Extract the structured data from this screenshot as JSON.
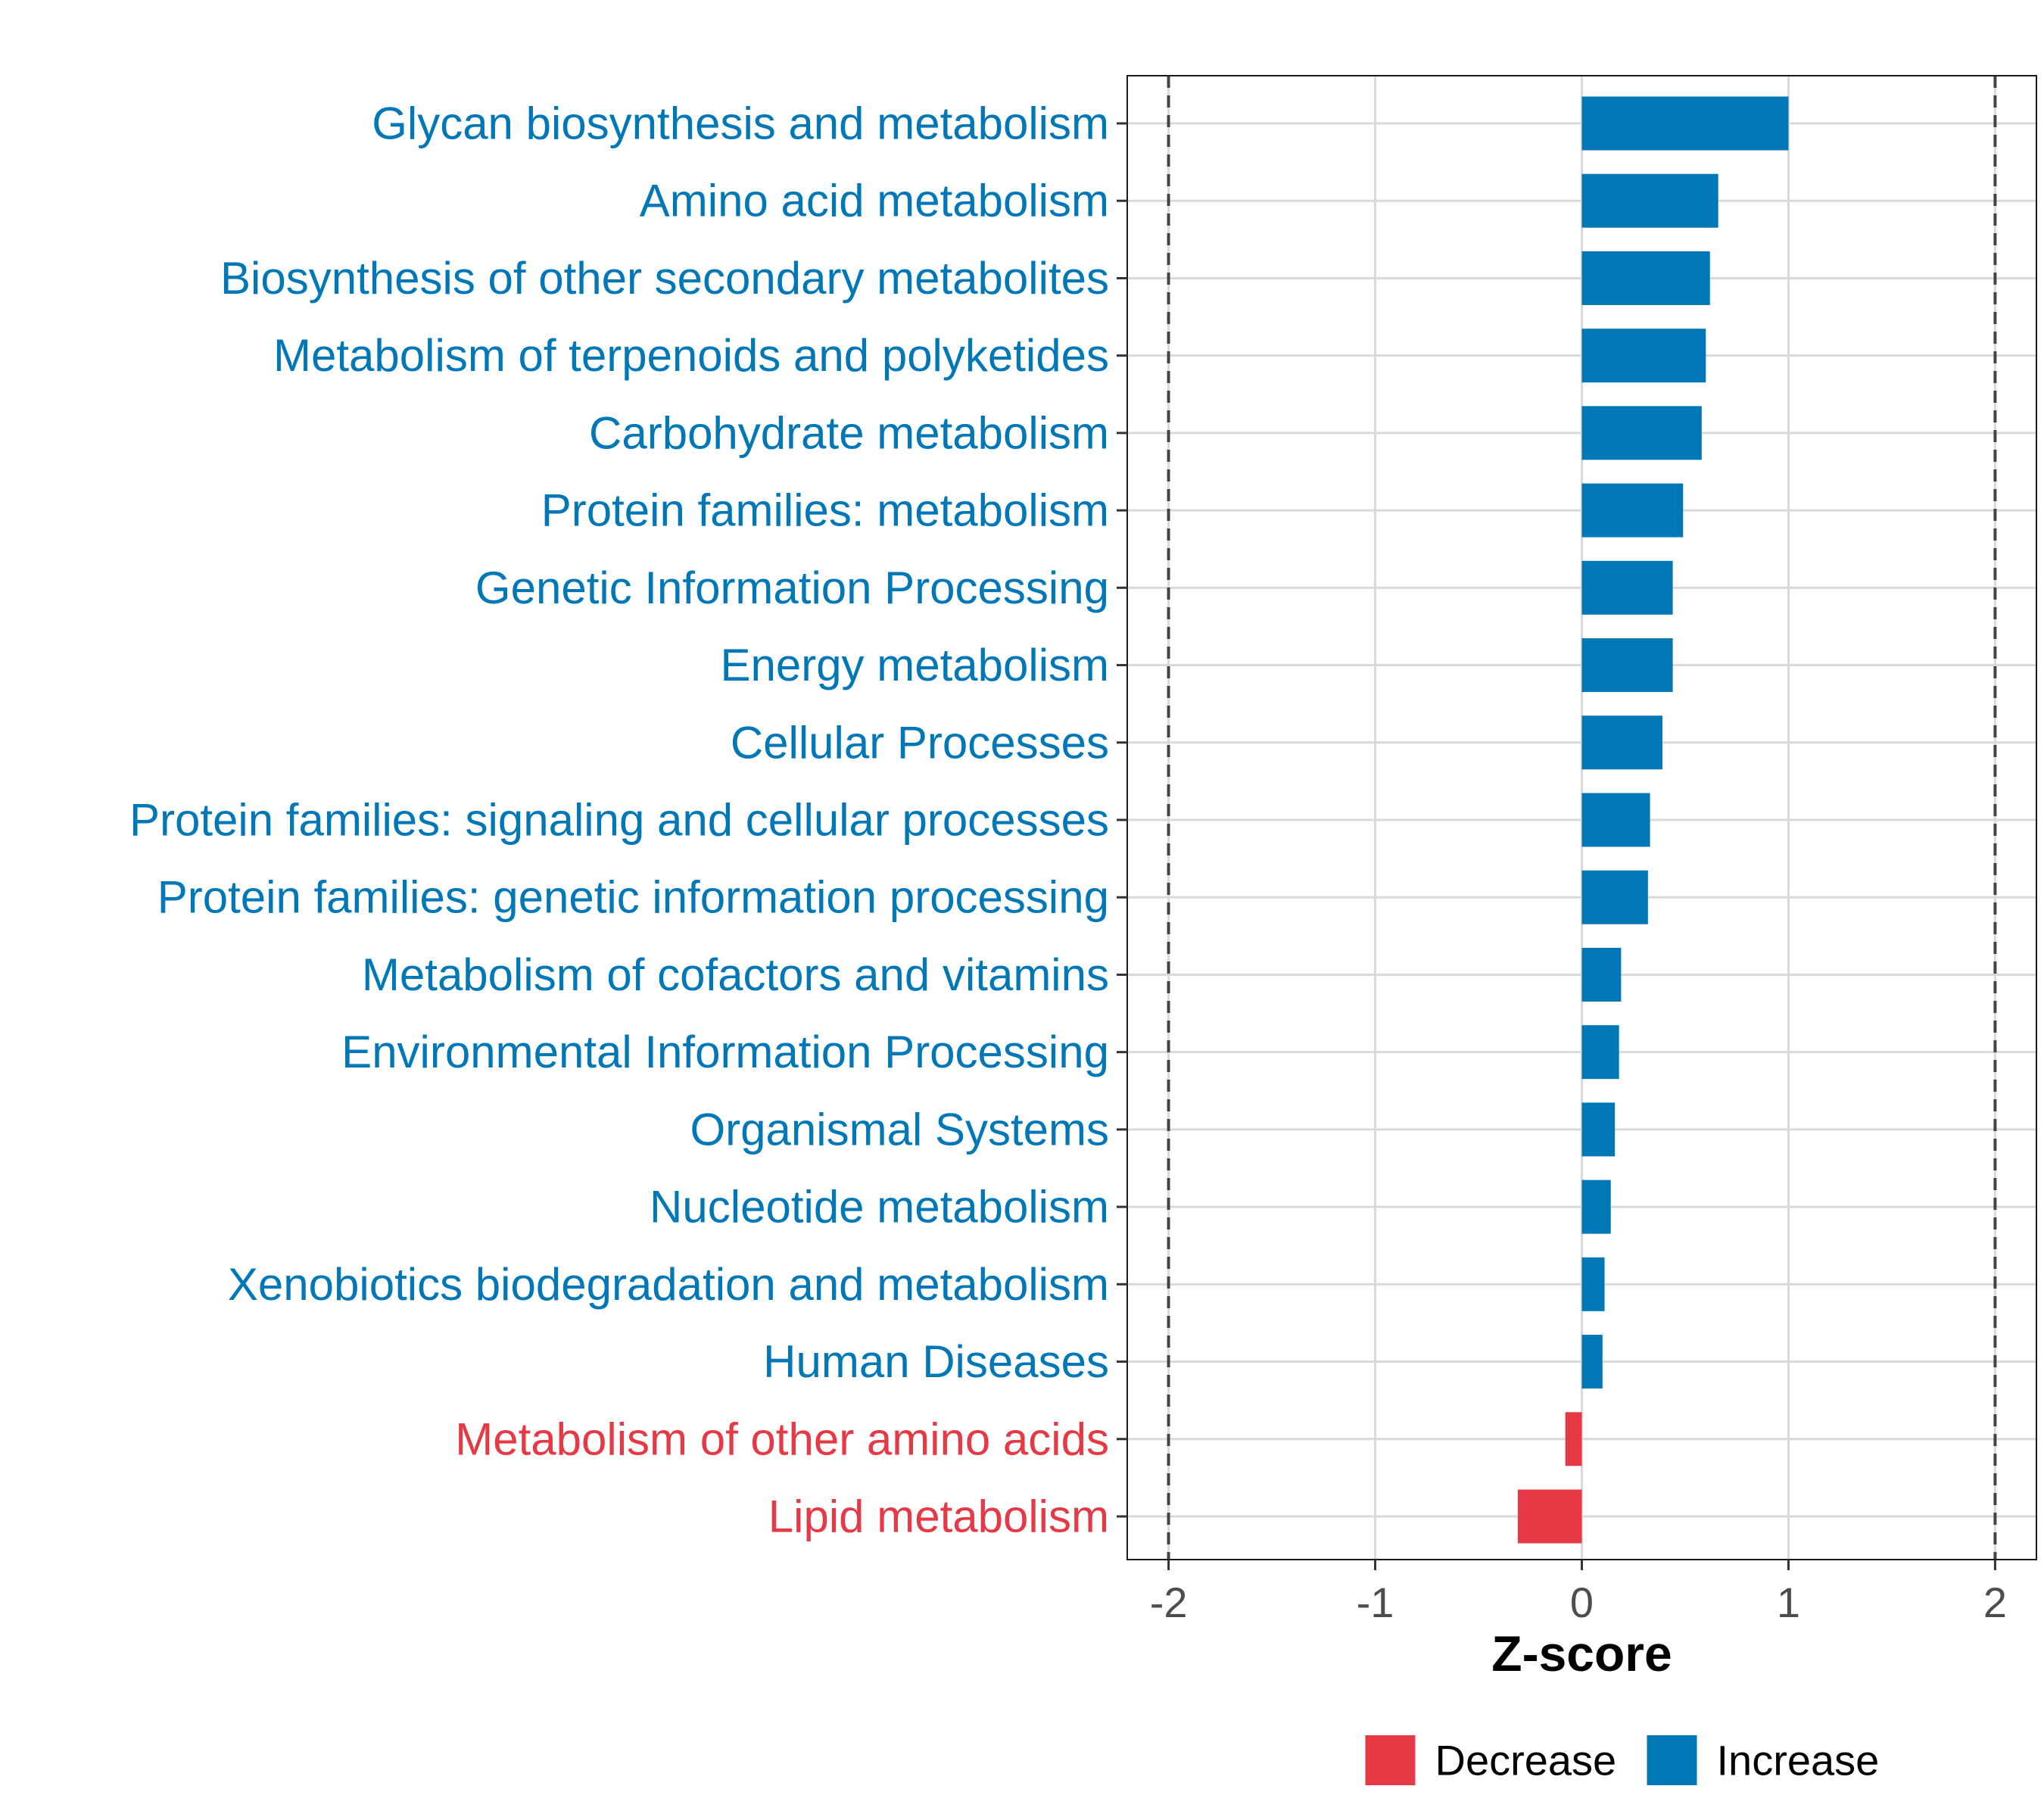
{
  "chart_data": {
    "type": "bar",
    "orientation": "horizontal",
    "title": "",
    "xlabel": "Z-score",
    "ylabel": "",
    "xlim": [
      -2.2,
      2.2
    ],
    "x_ticks": [
      -2,
      -1,
      0,
      1,
      2
    ],
    "x_tick_labels": [
      "-2",
      "-1",
      "0",
      "1",
      "2"
    ],
    "reference_lines": [
      -2,
      2
    ],
    "grid": true,
    "legend_position": "bottom",
    "categories": [
      "Glycan biosynthesis and metabolism",
      "Amino acid metabolism",
      "Biosynthesis of other secondary metabolites",
      "Metabolism of terpenoids and polyketides",
      "Carbohydrate metabolism",
      "Protein families: metabolism",
      "Genetic Information Processing",
      "Energy metabolism",
      "Cellular Processes",
      "Protein families: signaling and cellular processes",
      "Protein families: genetic information processing",
      "Metabolism of cofactors and vitamins",
      "Environmental Information Processing",
      "Organismal Systems",
      "Nucleotide metabolism",
      "Xenobiotics biodegradation and metabolism",
      "Human Diseases",
      "Metabolism of other amino acids",
      "Lipid metabolism"
    ],
    "values": [
      1.0,
      0.66,
      0.62,
      0.6,
      0.58,
      0.49,
      0.44,
      0.44,
      0.39,
      0.33,
      0.32,
      0.19,
      0.18,
      0.16,
      0.14,
      0.11,
      0.1,
      -0.08,
      -0.31
    ],
    "groups": [
      "Increase",
      "Increase",
      "Increase",
      "Increase",
      "Increase",
      "Increase",
      "Increase",
      "Increase",
      "Increase",
      "Increase",
      "Increase",
      "Increase",
      "Increase",
      "Increase",
      "Increase",
      "Increase",
      "Increase",
      "Decrease",
      "Decrease"
    ],
    "legend": [
      {
        "label": "Decrease",
        "color": "#e63946"
      },
      {
        "label": "Increase",
        "color": "#0077b6"
      }
    ],
    "colors": {
      "Decrease": "#e63946",
      "Increase": "#0077b6"
    }
  }
}
